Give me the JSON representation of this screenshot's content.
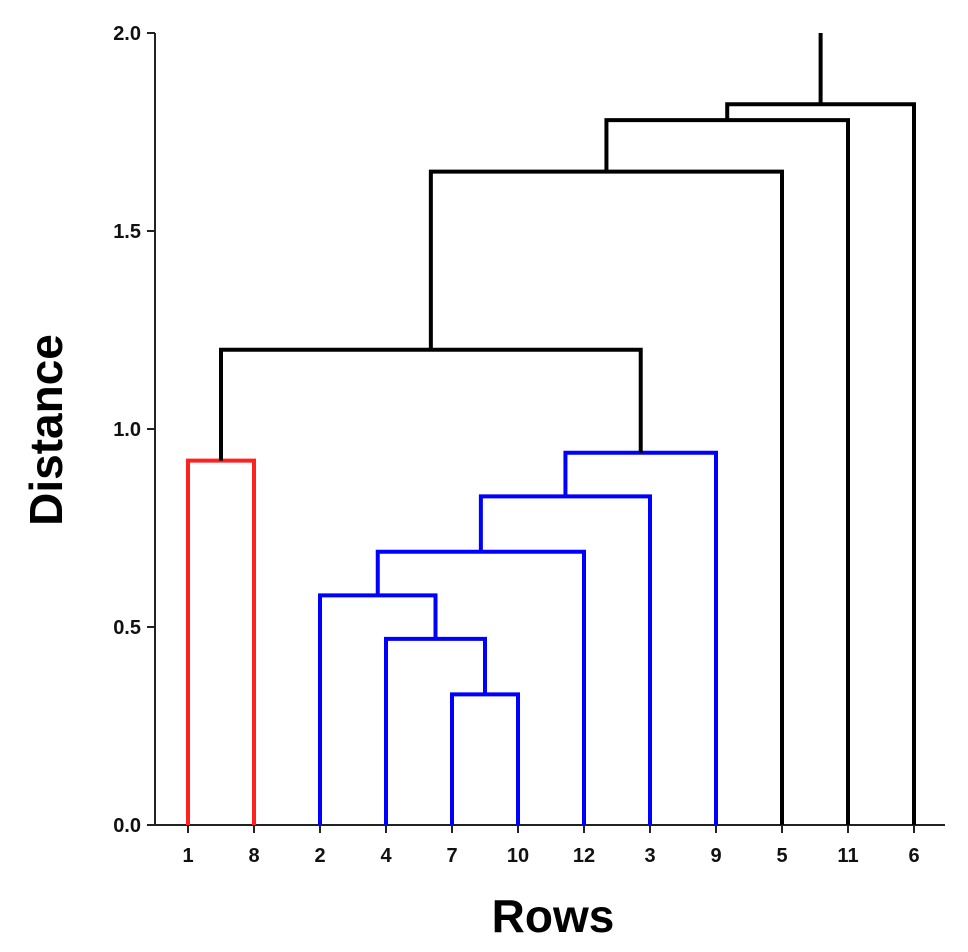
{
  "chart_data": {
    "type": "dendrogram",
    "title": "",
    "xlabel": "Rows",
    "ylabel": "Distance",
    "ylim": [
      0,
      2.0
    ],
    "yticks": [
      "0.0",
      "0.5",
      "1.0",
      "1.5",
      "2.0"
    ],
    "leaf_order": [
      "1",
      "8",
      "2",
      "4",
      "7",
      "10",
      "12",
      "3",
      "9",
      "5",
      "11",
      "6"
    ],
    "merges": [
      {
        "id": "m1",
        "left": "7",
        "right": "10",
        "height": 0.33,
        "color": "#0000ff"
      },
      {
        "id": "m2",
        "left": "4",
        "right": "m1",
        "height": 0.47,
        "color": "#0000ff"
      },
      {
        "id": "m3",
        "left": "2",
        "right": "m2",
        "height": 0.58,
        "color": "#0000ff"
      },
      {
        "id": "m4",
        "left": "m3",
        "right": "12",
        "height": 0.69,
        "color": "#0000ff"
      },
      {
        "id": "m5",
        "left": "m4",
        "right": "3",
        "height": 0.83,
        "color": "#0000ff"
      },
      {
        "id": "m6",
        "left": "1",
        "right": "8",
        "height": 0.92,
        "color": "#ff2020"
      },
      {
        "id": "m7",
        "left": "m5",
        "right": "9",
        "height": 0.94,
        "color": "#0000ff"
      },
      {
        "id": "m8",
        "left": "m6",
        "right": "m7",
        "height": 1.2,
        "color": "#000000"
      },
      {
        "id": "m9",
        "left": "m8",
        "right": "5",
        "height": 1.65,
        "color": "#000000"
      },
      {
        "id": "m10",
        "left": "m9",
        "right": "11",
        "height": 1.78,
        "color": "#000000"
      },
      {
        "id": "m11",
        "left": "m10",
        "right": "6",
        "height": 1.82,
        "color": "#000000"
      }
    ],
    "root_stem_to": 2.0,
    "grid": false,
    "legend": "none"
  }
}
